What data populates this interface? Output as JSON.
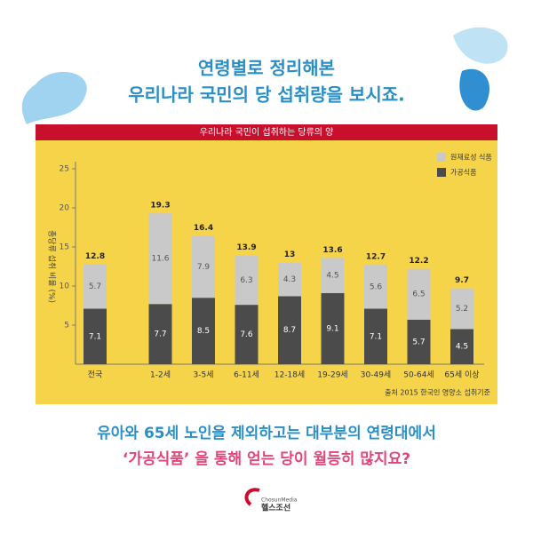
{
  "header": {
    "line1": "연령별로 정리해본",
    "line2": "우리나라 국민의 당 섭취량을 보시죠."
  },
  "chart_data": {
    "type": "stacked-bar",
    "title": "우리나라 국민이 섭취하는 당류의 양",
    "y_label": "총당류 섭취 비율 (%)",
    "categories": [
      "전국",
      "1-2세",
      "3-5세",
      "6-11세",
      "12-18세",
      "19-29세",
      "30-49세",
      "50-64세",
      "65세 이상"
    ],
    "series": [
      {
        "name": "가공식품",
        "color": "#4b4b4b",
        "values": [
          7.1,
          7.7,
          8.5,
          7.6,
          8.7,
          9.1,
          7.1,
          5.7,
          4.5
        ]
      },
      {
        "name": "원재료성 식품",
        "color": "#c9c9c9",
        "values": [
          5.7,
          11.6,
          7.9,
          6.3,
          4.3,
          4.5,
          5.6,
          6.5,
          5.2
        ]
      }
    ],
    "totals": [
      12.8,
      19.3,
      16.4,
      13.9,
      13,
      13.6,
      12.7,
      12.2,
      9.7
    ],
    "ylim": [
      0,
      25
    ],
    "yticks": [
      5,
      10,
      15,
      20,
      25
    ],
    "source": "출처 2015 한국인 영양소 섭취기준"
  },
  "footer": {
    "line1": "유아와 65세 노인을 제외하고는 대부분의 연령대에서",
    "line2": "‘가공식품’ 을 통해 얻는 당이 월등히 많지요?"
  },
  "logo": {
    "top": "ChosunMedia",
    "bottom": "헬스조선"
  }
}
